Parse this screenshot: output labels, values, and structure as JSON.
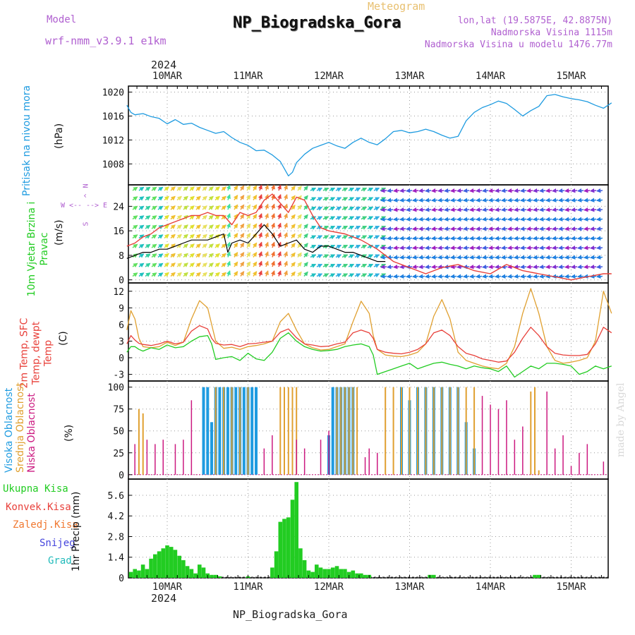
{
  "header": {
    "title": "NP_Biogradska_Gora",
    "meteogram_label": "Meteogram",
    "model_label": "Model",
    "model_name": "wrf-nmm_v3.9.1  e1km",
    "lonlat": "lon,lat (19.5875E, 42.8875N)",
    "elevation": "Nadmorska Visina 1115m",
    "model_elevation": "Nadmorska Visina u modelu 1476.77m",
    "year_top": "2024",
    "year_bottom": "2024",
    "footer": "NP_Biogradska_Gora",
    "credit": "made by Angel"
  },
  "colors": {
    "pressure": "#1e9be0",
    "wind_speed": "#000000",
    "gust": "#e8403a",
    "temp2m": "#e8403a",
    "sfc_temp": "#e0a030",
    "dewpoint": "#22cc22",
    "cloud_high": "#1e9be0",
    "cloud_mid": "#e0a030",
    "cloud_low": "#cc1a80",
    "precip_total": "#22cc22",
    "precip_conv": "#e8403a",
    "snow": "#4444dd",
    "model_label": "#b060d0"
  },
  "chart_data": [
    {
      "type": "line",
      "name": "pressure",
      "ylabel": "Pritisak na nivou mora",
      "unit": "(hPa)",
      "x_ticks": [
        "10MAR",
        "11MAR",
        "12MAR",
        "13MAR",
        "14MAR",
        "15MAR"
      ],
      "y_ticks": [
        1008,
        1012,
        1016,
        1020
      ],
      "ylim": [
        1004.5,
        1021
      ],
      "x_days": [
        -0.5,
        -0.45,
        -0.4,
        -0.3,
        -0.2,
        -0.1,
        0,
        0.1,
        0.2,
        0.3,
        0.4,
        0.5,
        0.6,
        0.7,
        0.8,
        0.9,
        1.0,
        1.1,
        1.2,
        1.3,
        1.4,
        1.5,
        1.55,
        1.6,
        1.7,
        1.8,
        1.9,
        2.0,
        2.1,
        2.2,
        2.3,
        2.4,
        2.5,
        2.6,
        2.7,
        2.8,
        2.9,
        3.0,
        3.1,
        3.2,
        3.3,
        3.4,
        3.5,
        3.6,
        3.7,
        3.8,
        3.9,
        4.0,
        4.1,
        4.2,
        4.3,
        4.4,
        4.5,
        4.6,
        4.7,
        4.8,
        4.9,
        5.0,
        5.1,
        5.2,
        5.3,
        5.4,
        5.5
      ],
      "values": [
        1017.8,
        1016.6,
        1016.2,
        1016.4,
        1015.9,
        1015.6,
        1014.7,
        1015.4,
        1014.6,
        1014.8,
        1014.1,
        1013.6,
        1013.1,
        1013.4,
        1012.4,
        1011.6,
        1011.1,
        1010.2,
        1010.3,
        1009.5,
        1008.4,
        1006.0,
        1006.6,
        1008.2,
        1009.6,
        1010.6,
        1011.1,
        1011.6,
        1011.0,
        1010.6,
        1011.6,
        1012.3,
        1011.6,
        1011.2,
        1012.2,
        1013.4,
        1013.6,
        1013.2,
        1013.4,
        1013.8,
        1013.4,
        1012.8,
        1012.3,
        1012.6,
        1015.2,
        1016.6,
        1017.4,
        1017.9,
        1018.5,
        1018.1,
        1017.1,
        1016.0,
        1016.9,
        1017.6,
        1019.4,
        1019.6,
        1019.2,
        1018.9,
        1018.7,
        1018.4,
        1017.8,
        1017.3,
        1018.2
      ]
    },
    {
      "type": "line",
      "name": "wind",
      "ylabel": "10m Vjetar Brzina i Pravac",
      "unit": "(m/s)",
      "compass": "N",
      "compass_left": "W",
      "compass_right": "E",
      "compass_bottom": "S",
      "arrow_left": "<--",
      "arrow_right": "-->",
      "arrow_up": "^",
      "y_ticks": [
        0,
        8,
        16,
        24
      ],
      "ylim": [
        -1,
        31
      ],
      "x_days": [
        -0.5,
        -0.4,
        -0.3,
        -0.2,
        -0.1,
        0,
        0.1,
        0.2,
        0.3,
        0.4,
        0.5,
        0.6,
        0.7,
        0.75,
        0.8,
        0.9,
        1.0,
        1.1,
        1.2,
        1.3,
        1.4,
        1.5,
        1.6,
        1.7,
        1.8,
        1.9,
        2.0,
        2.1,
        2.2,
        2.3,
        2.4,
        2.5,
        2.6,
        2.7
      ],
      "values": [
        7,
        8,
        9,
        9,
        10,
        10,
        11,
        12,
        13,
        13,
        13,
        14,
        15,
        9,
        12,
        13,
        12,
        15,
        18,
        15,
        11,
        12,
        13,
        10,
        9,
        11,
        11,
        10,
        9,
        9,
        8,
        7,
        6,
        6
      ],
      "gust_x_days": [
        -0.5,
        -0.4,
        -0.3,
        -0.2,
        -0.1,
        0,
        0.1,
        0.2,
        0.3,
        0.4,
        0.5,
        0.6,
        0.7,
        0.8,
        0.9,
        1.0,
        1.1,
        1.2,
        1.3,
        1.4,
        1.5,
        1.6,
        1.7,
        1.8,
        1.9,
        2.0,
        2.2,
        2.4,
        2.6,
        2.8,
        3.0,
        3.2,
        3.4,
        3.6,
        3.8,
        4.0,
        4.2,
        4.4,
        4.6,
        4.8,
        5.0,
        5.2,
        5.4,
        5.5
      ],
      "gust_values": [
        11,
        12,
        14,
        15,
        17,
        18,
        19,
        20,
        21,
        21,
        22,
        21,
        21,
        18,
        22,
        21,
        22,
        26,
        28,
        25,
        22,
        27,
        26,
        21,
        17,
        16,
        15,
        13,
        10,
        6,
        4,
        2,
        4,
        5,
        3,
        2,
        5,
        3,
        2,
        1,
        0,
        1,
        2,
        2
      ]
    },
    {
      "type": "line",
      "name": "temperature",
      "ylabel": "2m Temp, SFC Temp, dewpt Temp",
      "unit": "(C)",
      "y_ticks": [
        -3,
        0,
        3,
        6,
        9,
        12
      ],
      "ylim": [
        -4.2,
        13.5
      ],
      "x_days": [
        -0.5,
        -0.45,
        -0.4,
        -0.35,
        -0.3,
        -0.2,
        -0.1,
        0,
        0.1,
        0.2,
        0.3,
        0.4,
        0.5,
        0.55,
        0.6,
        0.7,
        0.8,
        0.9,
        1.0,
        1.1,
        1.2,
        1.3,
        1.4,
        1.5,
        1.6,
        1.7,
        1.8,
        1.9,
        2.0,
        2.1,
        2.2,
        2.3,
        2.4,
        2.5,
        2.55,
        2.6,
        2.7,
        2.8,
        2.9,
        3.0,
        3.1,
        3.2,
        3.3,
        3.4,
        3.5,
        3.6,
        3.7,
        3.8,
        3.9,
        4.0,
        4.1,
        4.2,
        4.3,
        4.4,
        4.5,
        4.6,
        4.7,
        4.8,
        4.9,
        5.0,
        5.1,
        5.2,
        5.3,
        5.4,
        5.5
      ],
      "t2m": [
        2.5,
        4.0,
        3.2,
        2.6,
        2.4,
        2.2,
        2.5,
        3.0,
        2.5,
        2.8,
        4.8,
        5.8,
        5.2,
        3.5,
        2.6,
        2.3,
        2.4,
        2.0,
        2.5,
        2.6,
        2.8,
        3.0,
        4.6,
        5.2,
        3.6,
        2.5,
        2.3,
        2.0,
        2.1,
        2.5,
        2.8,
        4.5,
        5.0,
        4.5,
        3.5,
        1.5,
        1.0,
        0.8,
        0.7,
        1.0,
        1.5,
        2.5,
        4.5,
        5.0,
        4.0,
        2.0,
        0.8,
        0.4,
        -0.2,
        -0.5,
        -0.8,
        -0.6,
        1.0,
        3.5,
        5.5,
        4.0,
        2.0,
        0.8,
        0.5,
        0.4,
        0.4,
        0.6,
        2.5,
        5.5,
        4.5
      ],
      "sfc": [
        5.0,
        8.5,
        7.0,
        3.5,
        2.0,
        1.8,
        2.0,
        2.8,
        2.2,
        2.8,
        7.0,
        10.3,
        9.0,
        6.0,
        3.0,
        1.7,
        1.9,
        1.5,
        2.0,
        2.2,
        2.5,
        3.0,
        6.5,
        8.0,
        5.0,
        2.5,
        1.8,
        1.4,
        1.5,
        2.0,
        2.5,
        6.5,
        10.2,
        8.0,
        4.0,
        1.5,
        0.5,
        0.3,
        0.2,
        0.5,
        1.0,
        2.5,
        7.5,
        10.5,
        7.0,
        1.0,
        -0.5,
        -1.0,
        -1.5,
        -1.8,
        -2.0,
        -1.0,
        2.0,
        8.0,
        12.5,
        8.0,
        2.0,
        -0.5,
        -1.0,
        -0.8,
        -0.5,
        0.0,
        3.0,
        12.0,
        8.0
      ],
      "dewpt": [
        1.0,
        2.0,
        2.0,
        1.5,
        1.2,
        1.8,
        1.5,
        2.3,
        1.8,
        2.0,
        3.0,
        3.8,
        4.0,
        2.5,
        -0.3,
        0.0,
        0.2,
        -0.5,
        0.8,
        -0.2,
        -0.5,
        1.0,
        3.5,
        4.5,
        3.0,
        2.0,
        1.5,
        1.2,
        1.3,
        1.5,
        2.0,
        2.3,
        2.5,
        2.0,
        0.5,
        -3.0,
        -2.5,
        -2.0,
        -1.5,
        -1.0,
        -2.0,
        -1.5,
        -1.0,
        -0.8,
        -1.2,
        -1.5,
        -2.0,
        -1.5,
        -1.8,
        -2.0,
        -2.5,
        -1.5,
        -3.5,
        -2.5,
        -1.5,
        -2.0,
        -1.0,
        -1.0,
        -1.2,
        -1.5,
        -3.0,
        -2.5,
        -1.5,
        -2.0,
        -1.5
      ]
    },
    {
      "type": "bar",
      "name": "clouds",
      "ylabel_high": "Visoka Oblacnost",
      "ylabel_mid": "Srednja Oblacnost",
      "ylabel_low": "Niska Oblacnost",
      "unit": "(%)",
      "y_ticks": [
        0,
        25,
        50,
        75,
        100
      ],
      "ylim": [
        -5,
        107
      ],
      "high_x_days": [
        0.45,
        0.5,
        0.55,
        0.6,
        0.65,
        0.7,
        0.75,
        0.8,
        0.85,
        0.9,
        0.95,
        1.0,
        1.05,
        1.1,
        2.0,
        2.05,
        2.1,
        2.15,
        2.2,
        2.25,
        2.3,
        2.9,
        3.0,
        3.1,
        3.2,
        3.3,
        3.4,
        3.5,
        3.6,
        3.7,
        3.8
      ],
      "high_values": [
        100,
        100,
        60,
        100,
        100,
        100,
        100,
        100,
        100,
        100,
        100,
        100,
        100,
        100,
        45,
        100,
        100,
        100,
        100,
        100,
        100,
        100,
        85,
        100,
        100,
        100,
        100,
        100,
        100,
        60,
        30
      ],
      "mid_x_days": [
        -0.35,
        -0.3,
        0.6,
        0.7,
        0.8,
        0.9,
        1.0,
        1.4,
        1.45,
        1.5,
        1.55,
        1.6,
        2.1,
        2.15,
        2.2,
        2.25,
        2.3,
        2.35,
        2.7,
        2.8,
        2.9,
        3.0,
        3.1,
        3.2,
        3.3,
        3.4,
        3.5,
        3.6,
        3.7,
        3.8,
        4.5,
        4.55,
        4.6
      ],
      "mid_values": [
        75,
        70,
        100,
        100,
        100,
        100,
        100,
        100,
        100,
        100,
        100,
        100,
        100,
        100,
        100,
        100,
        100,
        100,
        100,
        100,
        100,
        100,
        100,
        100,
        100,
        100,
        100,
        100,
        100,
        100,
        95,
        100,
        5
      ],
      "low_x_days": [
        -0.4,
        -0.25,
        -0.15,
        -0.05,
        0.1,
        0.2,
        0.3,
        1.2,
        1.3,
        1.6,
        1.7,
        1.9,
        2.0,
        2.45,
        2.5,
        2.6,
        3.9,
        4.0,
        4.1,
        4.2,
        4.3,
        4.4,
        4.7,
        4.8,
        4.9,
        5.0,
        5.1,
        5.2,
        5.4
      ],
      "low_values": [
        35,
        40,
        35,
        40,
        35,
        40,
        85,
        30,
        45,
        40,
        30,
        40,
        50,
        20,
        30,
        25,
        90,
        80,
        75,
        85,
        40,
        55,
        95,
        30,
        45,
        10,
        25,
        35,
        15
      ]
    },
    {
      "type": "bar",
      "name": "precipitation",
      "ylabel": "1hr Precip (mm)",
      "legend": [
        "Ukupna Kisa",
        "Konvek.Kisa",
        "Zaledj.Kisa",
        "Snijeg",
        "Grad"
      ],
      "y_ticks": [
        0,
        1.4,
        2.8,
        4.2,
        5.6
      ],
      "ylim": [
        0,
        6.7
      ],
      "x_days": [
        -0.45,
        -0.4,
        -0.35,
        -0.3,
        -0.25,
        -0.2,
        -0.15,
        -0.1,
        -0.05,
        0,
        0.05,
        0.1,
        0.15,
        0.2,
        0.25,
        0.3,
        0.35,
        0.4,
        0.45,
        0.5,
        0.55,
        0.6,
        0.65,
        1.0,
        1.3,
        1.35,
        1.4,
        1.45,
        1.5,
        1.55,
        1.6,
        1.65,
        1.7,
        1.75,
        1.8,
        1.85,
        1.9,
        1.95,
        2.0,
        2.05,
        2.1,
        2.15,
        2.2,
        2.25,
        2.3,
        2.35,
        2.4,
        2.45,
        2.5,
        3.25,
        3.3,
        4.55,
        4.6
      ],
      "values": [
        0.4,
        0.6,
        0.5,
        0.9,
        0.6,
        1.3,
        1.6,
        1.8,
        2.0,
        2.2,
        2.1,
        1.9,
        1.5,
        1.2,
        0.8,
        0.6,
        0.3,
        0.9,
        0.7,
        0.3,
        0.2,
        0.2,
        0.1,
        0.1,
        0.7,
        1.8,
        3.8,
        4.0,
        4.1,
        5.3,
        6.5,
        2.0,
        1.2,
        0.5,
        0.4,
        0.9,
        0.7,
        0.6,
        0.6,
        0.7,
        0.8,
        0.6,
        0.6,
        0.4,
        0.5,
        0.3,
        0.3,
        0.2,
        0.2,
        0.2,
        0.2,
        0.2,
        0.2
      ]
    }
  ]
}
